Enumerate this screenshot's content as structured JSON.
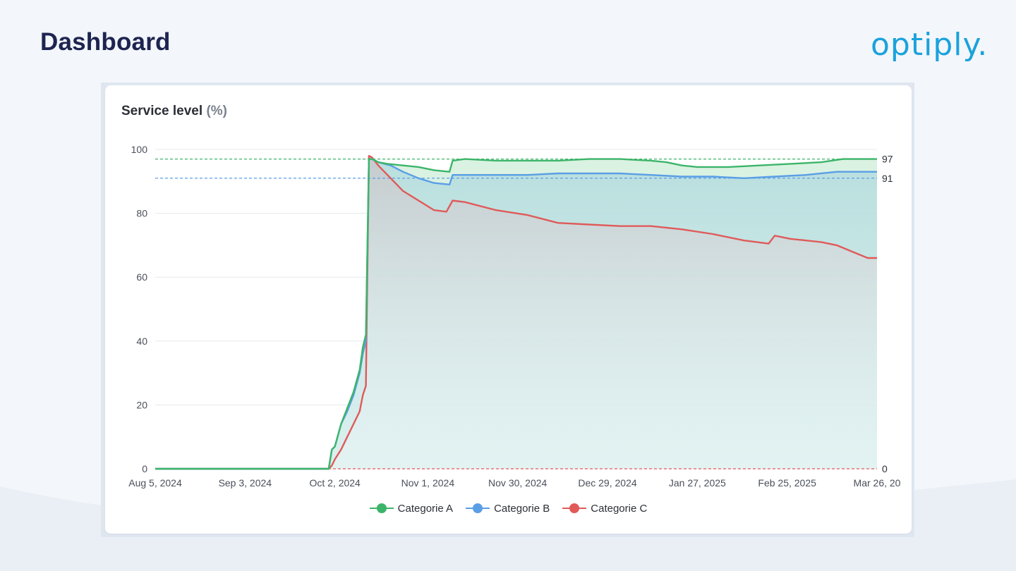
{
  "page": {
    "title": "Dashboard"
  },
  "logo": {
    "text": "optiply."
  },
  "colors": {
    "background": "#f3f6fa",
    "title": "#1e2450",
    "logo": "#1aa2dc",
    "series_a": "#3cb56a",
    "series_b": "#5a9ee6",
    "series_c": "#e05a5a"
  },
  "chart_data": {
    "type": "line",
    "title": "Service level",
    "title_unit": "(%)",
    "ylim": [
      0,
      100
    ],
    "yticks": [
      0,
      20,
      40,
      60,
      80,
      100
    ],
    "grid": true,
    "legend_position": "bottom",
    "x_ticks": [
      "Aug 5, 2024",
      "Sep 3, 2024",
      "Oct 2, 2024",
      "Nov 1, 2024",
      "Nov 30, 2024",
      "Dec 29, 2024",
      "Jan 27, 2025",
      "Feb 25, 2025",
      "Mar 26, 20"
    ],
    "x_tick_days": [
      0,
      29,
      58,
      88,
      117,
      146,
      175,
      204,
      233
    ],
    "x_range_days": [
      0,
      233
    ],
    "reference_lines": [
      {
        "value": 97,
        "label": "97",
        "color": "#3cb56a"
      },
      {
        "value": 91,
        "label": "91",
        "color": "#5a9ee6"
      },
      {
        "value": 0,
        "label": "0",
        "color": "#e05a5a"
      }
    ],
    "series": [
      {
        "name": "Categorie A",
        "color": "#3cb56a",
        "points": [
          [
            0,
            0
          ],
          [
            56,
            0
          ],
          [
            57,
            6
          ],
          [
            58,
            7
          ],
          [
            60,
            14
          ],
          [
            62,
            19
          ],
          [
            64,
            24
          ],
          [
            66,
            31
          ],
          [
            67,
            38
          ],
          [
            68,
            42
          ],
          [
            69,
            97
          ],
          [
            70,
            97
          ],
          [
            72,
            96
          ],
          [
            75,
            95.5
          ],
          [
            80,
            95
          ],
          [
            85,
            94.5
          ],
          [
            90,
            93.5
          ],
          [
            95,
            93
          ],
          [
            96,
            96.5
          ],
          [
            100,
            97
          ],
          [
            110,
            96.5
          ],
          [
            120,
            96.5
          ],
          [
            130,
            96.5
          ],
          [
            140,
            97
          ],
          [
            150,
            97
          ],
          [
            160,
            96.5
          ],
          [
            165,
            96
          ],
          [
            170,
            95
          ],
          [
            175,
            94.5
          ],
          [
            185,
            94.5
          ],
          [
            195,
            95
          ],
          [
            205,
            95.5
          ],
          [
            215,
            96
          ],
          [
            222,
            97
          ],
          [
            228,
            97
          ],
          [
            233,
            97
          ]
        ]
      },
      {
        "name": "Categorie B",
        "color": "#5a9ee6",
        "points": [
          [
            0,
            0
          ],
          [
            56,
            0
          ],
          [
            57,
            6
          ],
          [
            58,
            7
          ],
          [
            60,
            14
          ],
          [
            62,
            18
          ],
          [
            64,
            23
          ],
          [
            66,
            30
          ],
          [
            67,
            36
          ],
          [
            68,
            40
          ],
          [
            69,
            97
          ],
          [
            70,
            97
          ],
          [
            72,
            96
          ],
          [
            76,
            95
          ],
          [
            80,
            93
          ],
          [
            85,
            91
          ],
          [
            90,
            89.5
          ],
          [
            95,
            89
          ],
          [
            96,
            92
          ],
          [
            100,
            92
          ],
          [
            110,
            92
          ],
          [
            120,
            92
          ],
          [
            130,
            92.5
          ],
          [
            140,
            92.5
          ],
          [
            150,
            92.5
          ],
          [
            160,
            92
          ],
          [
            170,
            91.5
          ],
          [
            180,
            91.5
          ],
          [
            190,
            91
          ],
          [
            200,
            91.5
          ],
          [
            210,
            92
          ],
          [
            220,
            93
          ],
          [
            228,
            93
          ],
          [
            233,
            93
          ]
        ]
      },
      {
        "name": "Categorie C",
        "color": "#e05a5a",
        "points": [
          [
            0,
            0
          ],
          [
            56,
            0
          ],
          [
            57,
            1
          ],
          [
            58,
            3
          ],
          [
            60,
            6
          ],
          [
            62,
            10
          ],
          [
            64,
            14
          ],
          [
            66,
            18
          ],
          [
            67,
            23
          ],
          [
            68,
            26
          ],
          [
            69,
            98
          ],
          [
            70,
            97.5
          ],
          [
            72,
            95
          ],
          [
            76,
            91
          ],
          [
            80,
            87
          ],
          [
            85,
            84
          ],
          [
            90,
            81
          ],
          [
            94,
            80.5
          ],
          [
            96,
            84
          ],
          [
            100,
            83.5
          ],
          [
            110,
            81
          ],
          [
            120,
            79.5
          ],
          [
            130,
            77
          ],
          [
            140,
            76.5
          ],
          [
            150,
            76
          ],
          [
            160,
            76
          ],
          [
            170,
            75
          ],
          [
            180,
            73.5
          ],
          [
            190,
            71.5
          ],
          [
            198,
            70.5
          ],
          [
            200,
            73
          ],
          [
            205,
            72
          ],
          [
            210,
            71.5
          ],
          [
            215,
            71
          ],
          [
            220,
            70
          ],
          [
            225,
            68
          ],
          [
            230,
            66
          ],
          [
            233,
            66
          ]
        ]
      }
    ]
  }
}
